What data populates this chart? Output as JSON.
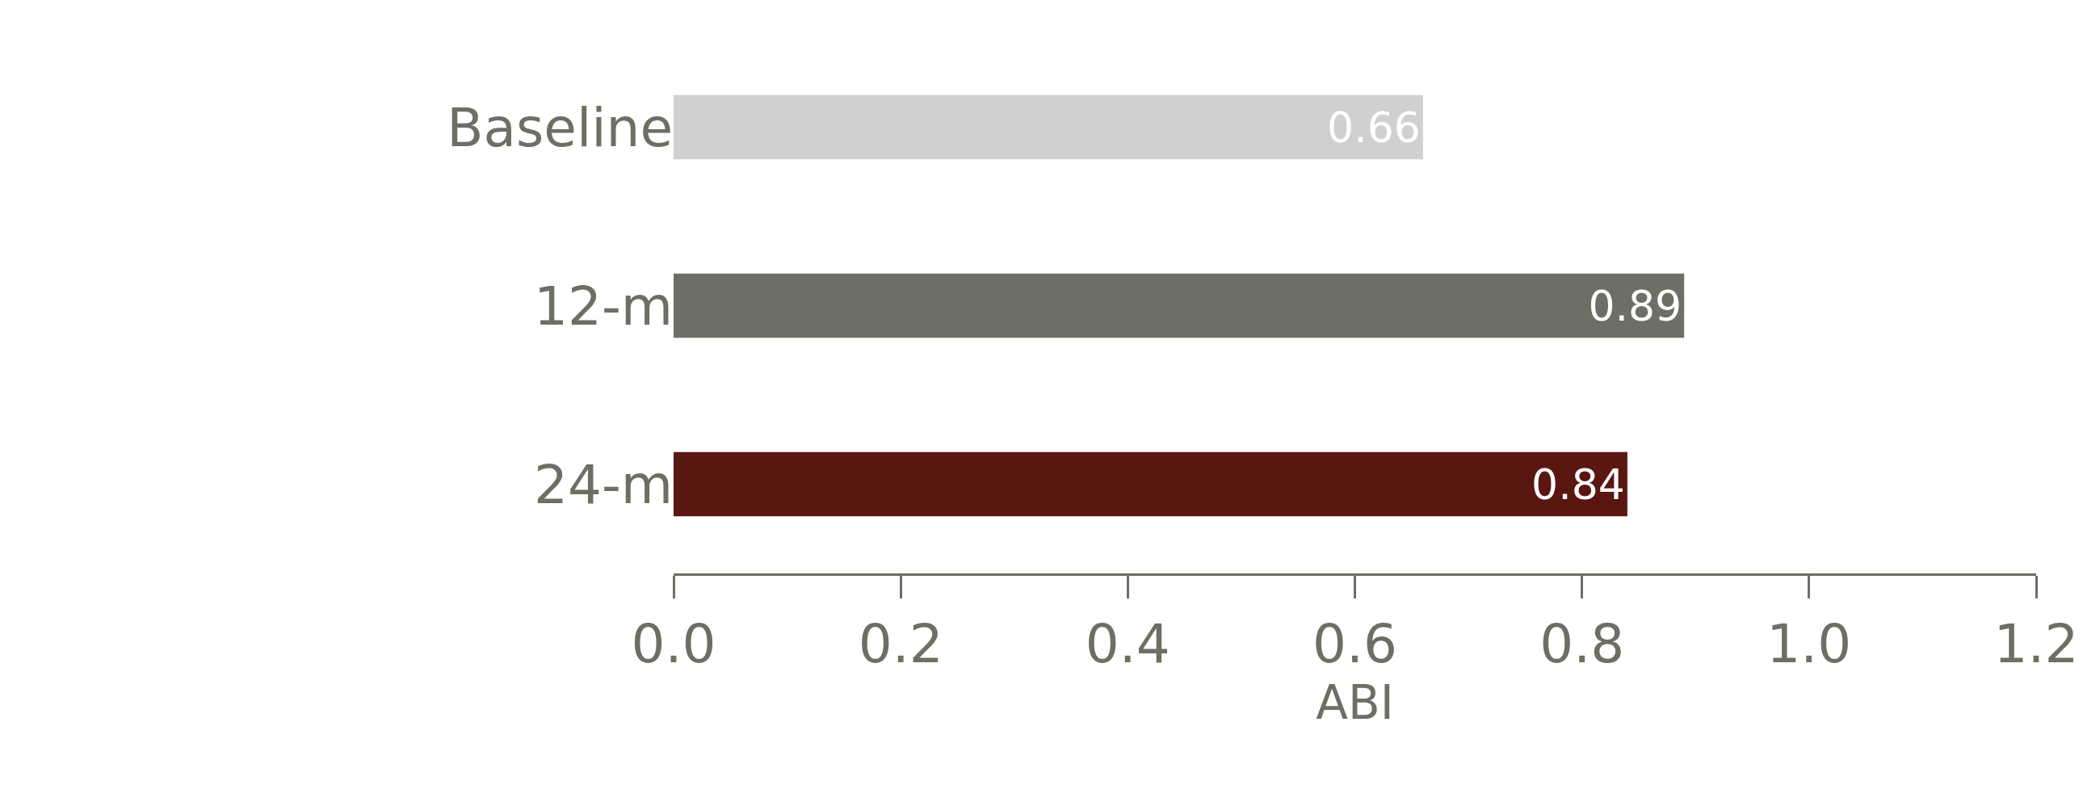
{
  "chart_data": {
    "type": "bar",
    "orientation": "horizontal",
    "xlabel": "ABI",
    "categories": [
      "Baseline",
      "12-m",
      "24-m"
    ],
    "values": [
      0.66,
      0.89,
      0.84
    ],
    "colors": [
      "#d0d0d0",
      "#6e6e64",
      "#5a1610"
    ],
    "xlim": [
      0,
      1.2
    ],
    "xticks": [
      {
        "value": 0,
        "label": "0.0"
      },
      0.2,
      0.4,
      0.6,
      0.8,
      {
        "value": 1,
        "label": "1.0"
      },
      1.2
    ],
    "data_labels": true
  }
}
